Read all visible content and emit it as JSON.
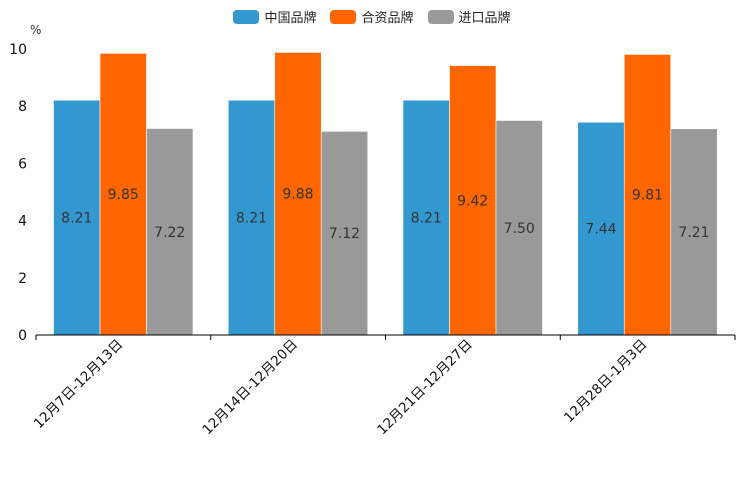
{
  "chart_data": {
    "type": "bar",
    "unit_label": "%",
    "categories": [
      "12月7日-12月13日",
      "12月14日-12月20日",
      "12月21日-12月27日",
      "12月28日-1月3日"
    ],
    "series": [
      {
        "name": "中国品牌",
        "color": "#3398d0",
        "values": [
          8.21,
          8.21,
          8.21,
          7.44
        ]
      },
      {
        "name": "合资品牌",
        "color": "#ff6600",
        "values": [
          9.85,
          9.88,
          9.42,
          9.81
        ]
      },
      {
        "name": "进口品牌",
        "color": "#999999",
        "values": [
          7.22,
          7.12,
          7.5,
          7.21
        ]
      }
    ],
    "ylim": [
      0,
      10
    ],
    "yticks": [
      0,
      2,
      4,
      6,
      8,
      10
    ],
    "legend_position": "top-center"
  }
}
